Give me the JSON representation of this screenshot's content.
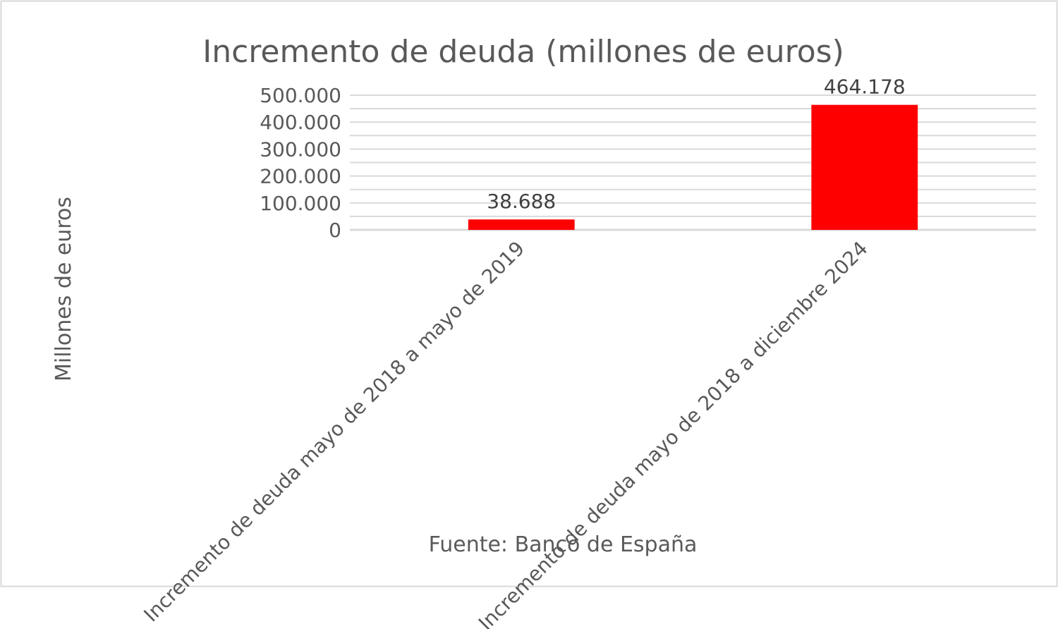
{
  "chart_data": {
    "type": "bar",
    "title": "Incremento de deuda (millones de euros)",
    "ylabel": "Millones de euros",
    "xlabel": "Fuente: Banco de España",
    "categories": [
      "Incremento de deuda mayo de 2018 a mayo de 2019",
      "Incremento de deuda mayo de 2018 a diciembre 2024"
    ],
    "values": [
      38688,
      464178
    ],
    "value_labels": [
      "38.688",
      "464.178"
    ],
    "ylim": [
      0,
      500000
    ],
    "yticks": [
      0,
      100000,
      200000,
      300000,
      400000,
      500000
    ],
    "ytick_labels": [
      "0",
      "100.000",
      "200.000",
      "300.000",
      "400.000",
      "500.000"
    ],
    "minor_gridlines": true,
    "legend": "none",
    "colors": {
      "bar": "#ff0000",
      "text": "#595959",
      "grid": "#d9d9d9",
      "border": "#d9d9d9"
    }
  }
}
